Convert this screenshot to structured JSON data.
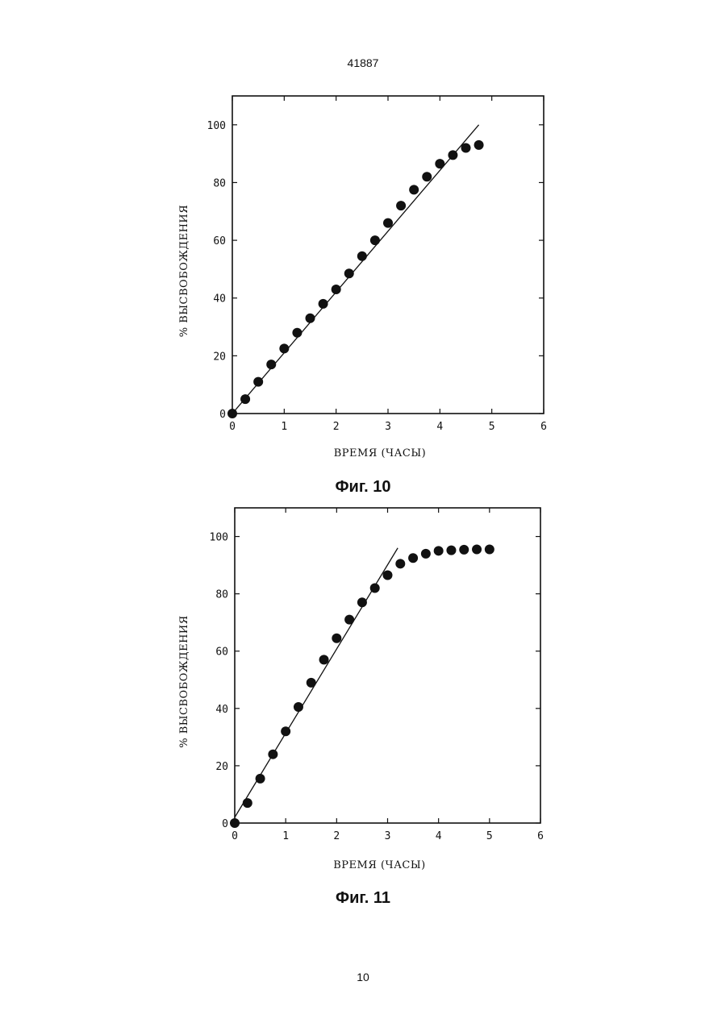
{
  "page": {
    "header": "41887",
    "footer": "10"
  },
  "chart_data": [
    {
      "type": "scatter",
      "caption": "Фиг. 10",
      "xlabel": "ВРЕМЯ (ЧАСЫ)",
      "ylabel": "% ВЫСВОБОЖДЕНИЯ",
      "xlim": [
        0,
        6
      ],
      "ylim": [
        0,
        110
      ],
      "xticks": [
        0,
        1,
        2,
        3,
        4,
        5,
        6
      ],
      "yticks": [
        0,
        20,
        40,
        60,
        80,
        100
      ],
      "grid": false,
      "points": {
        "x": [
          0,
          0.25,
          0.5,
          0.75,
          1.0,
          1.25,
          1.5,
          1.75,
          2.0,
          2.25,
          2.5,
          2.75,
          3.0,
          3.25,
          3.5,
          3.75,
          4.0,
          4.25,
          4.5,
          4.75
        ],
        "y": [
          0,
          5,
          11,
          17,
          22.5,
          28,
          33,
          38,
          43,
          48.5,
          54.5,
          60,
          66,
          72,
          77.5,
          82,
          86.5,
          89.5,
          92,
          93
        ]
      },
      "fit_line": {
        "x": [
          0,
          4.75
        ],
        "y": [
          0,
          100
        ]
      }
    },
    {
      "type": "scatter",
      "caption": "Фиг. 11",
      "xlabel": "ВРЕМЯ (ЧАСЫ)",
      "ylabel": "% ВЫСВОБОЖДЕНИЯ",
      "xlim": [
        0,
        6
      ],
      "ylim": [
        0,
        110
      ],
      "xticks": [
        0,
        1,
        2,
        3,
        4,
        5,
        6
      ],
      "yticks": [
        0,
        20,
        40,
        60,
        80,
        100
      ],
      "grid": false,
      "points": {
        "x": [
          0,
          0.25,
          0.5,
          0.75,
          1.0,
          1.25,
          1.5,
          1.75,
          2.0,
          2.25,
          2.5,
          2.75,
          3.0,
          3.25,
          3.5,
          3.75,
          4.0,
          4.25,
          4.5,
          4.75,
          5.0
        ],
        "y": [
          0,
          7,
          15.5,
          24,
          32,
          40.5,
          49,
          57,
          64.5,
          71,
          77,
          82,
          86.5,
          90.5,
          92.5,
          94,
          95,
          95.2,
          95.4,
          95.5,
          95.5
        ]
      },
      "fit_line": {
        "x": [
          0,
          3.2
        ],
        "y": [
          2,
          96
        ]
      }
    }
  ]
}
